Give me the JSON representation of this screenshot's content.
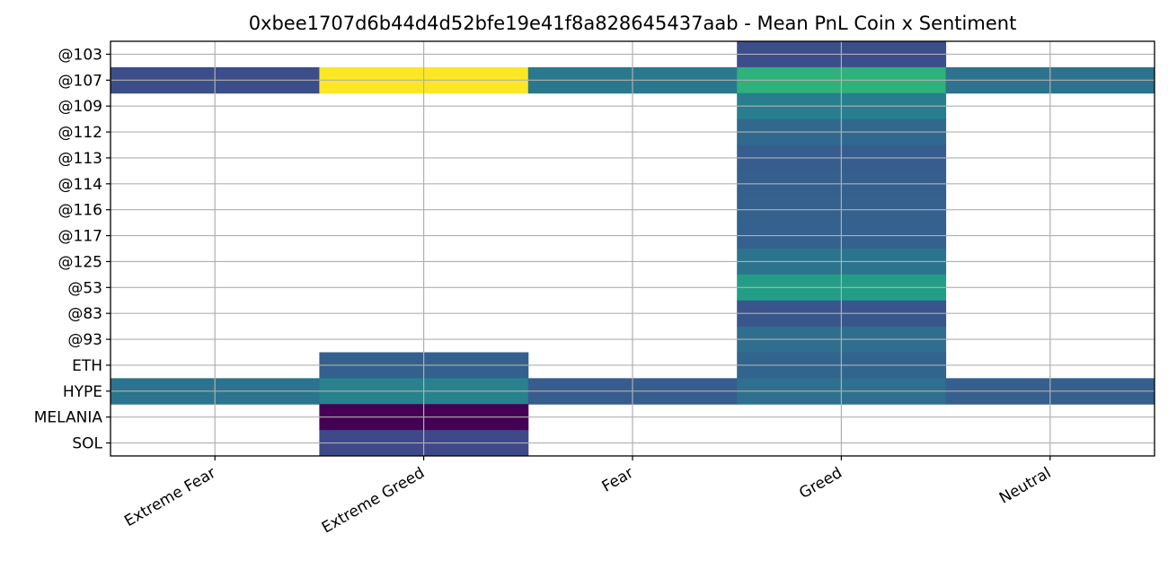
{
  "chart_data": {
    "type": "heatmap",
    "title": "0xbee1707d6b44d4d52bfe19e41f8a828645437aab - Mean PnL Coin x Sentiment",
    "xlabel": "",
    "ylabel": "",
    "x_categories": [
      "Extreme Fear",
      "Extreme Greed",
      "Fear",
      "Greed",
      "Neutral"
    ],
    "y_categories": [
      "@103",
      "@107",
      "@109",
      "@112",
      "@113",
      "@114",
      "@116",
      "@117",
      "@125",
      "@53",
      "@83",
      "@93",
      "ETH",
      "HYPE",
      "MELANIA",
      "SOL"
    ],
    "colormap": "viridis",
    "grid": true,
    "value_range": [
      0,
      1
    ],
    "values": [
      [
        null,
        null,
        null,
        0.3,
        null
      ],
      [
        0.3,
        1.0,
        0.5,
        0.8,
        0.47
      ],
      [
        null,
        null,
        null,
        0.53,
        null
      ],
      [
        null,
        null,
        null,
        0.43,
        null
      ],
      [
        null,
        null,
        null,
        0.37,
        null
      ],
      [
        null,
        null,
        null,
        0.38,
        null
      ],
      [
        null,
        null,
        null,
        0.39,
        null
      ],
      [
        null,
        null,
        null,
        0.39,
        null
      ],
      [
        null,
        null,
        null,
        0.48,
        null
      ],
      [
        null,
        null,
        null,
        0.7,
        null
      ],
      [
        null,
        null,
        null,
        0.33,
        null
      ],
      [
        null,
        null,
        null,
        0.45,
        null
      ],
      [
        null,
        0.38,
        null,
        0.41,
        null
      ],
      [
        0.48,
        0.55,
        0.37,
        0.46,
        0.38
      ],
      [
        null,
        0.0,
        null,
        null,
        null
      ],
      [
        null,
        0.27,
        null,
        null,
        null
      ]
    ]
  }
}
